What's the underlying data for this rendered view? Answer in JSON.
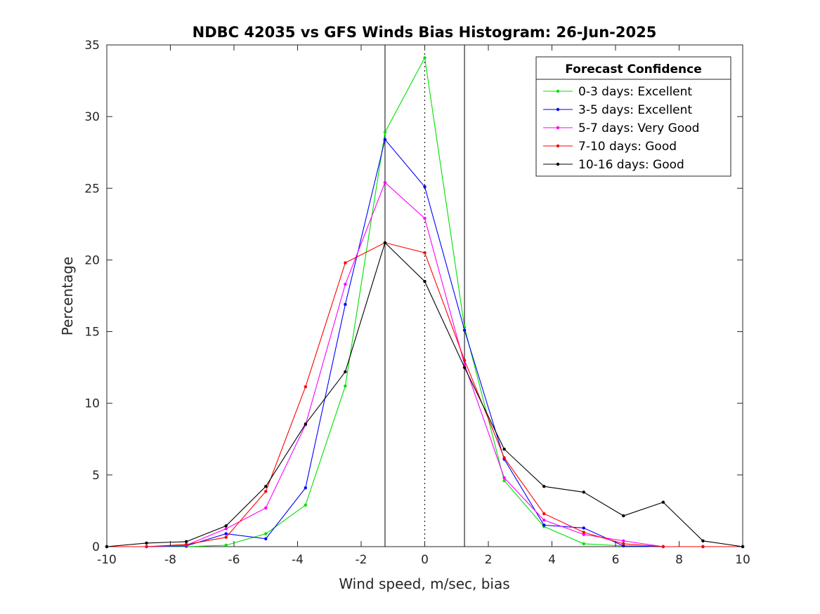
{
  "chart_data": {
    "type": "line",
    "title": "NDBC 42035 vs GFS Winds Bias Histogram: 26-Jun-2025",
    "xlabel": "Wind speed, m/sec, bias",
    "ylabel": "Percentage",
    "xlim": [
      -10,
      10
    ],
    "ylim": [
      0,
      35
    ],
    "xticks": [
      -10,
      -8,
      -6,
      -4,
      -2,
      0,
      2,
      4,
      6,
      8,
      10
    ],
    "yticks": [
      0,
      5,
      10,
      15,
      20,
      25,
      30,
      35
    ],
    "grid": false,
    "reference_lines": [
      {
        "x": -1.25,
        "style": "solid"
      },
      {
        "x": 0,
        "style": "dotted"
      },
      {
        "x": 1.25,
        "style": "solid"
      }
    ],
    "legend": {
      "title": "Forecast Confidence",
      "placement": "top-right"
    },
    "x": [
      -10,
      -8.75,
      -7.5,
      -6.25,
      -5,
      -3.75,
      -2.5,
      -1.25,
      0,
      1.25,
      2.5,
      3.75,
      5,
      6.25,
      7.5,
      8.75,
      10
    ],
    "series": [
      {
        "name": "0-3 days: Excellent",
        "color": "#00e000",
        "values": [
          0,
          0,
          0,
          0.1,
          0.9,
          2.9,
          11.2,
          28.9,
          34.1,
          15.3,
          4.6,
          1.4,
          0.2,
          0.05,
          0,
          0,
          0
        ]
      },
      {
        "name": "3-5 days: Excellent",
        "color": "#0000ff",
        "values": [
          0,
          0,
          0.05,
          0.9,
          0.55,
          4.1,
          16.9,
          28.4,
          25.1,
          15.1,
          6.1,
          1.5,
          1.3,
          0.05,
          0,
          0,
          0
        ]
      },
      {
        "name": "5-7 days: Very Good",
        "color": "#ff00ff",
        "values": [
          0,
          0,
          0.1,
          1.25,
          2.7,
          8.5,
          18.3,
          25.4,
          22.9,
          12.7,
          4.8,
          1.85,
          0.85,
          0.4,
          0,
          0,
          0
        ]
      },
      {
        "name": "7-10 days: Good",
        "color": "#ff0000",
        "values": [
          0,
          0,
          0.15,
          0.65,
          3.85,
          11.15,
          19.8,
          21.2,
          20.5,
          13.0,
          6.2,
          2.3,
          1.0,
          0.2,
          0,
          0,
          0
        ]
      },
      {
        "name": "10-16 days: Good",
        "color": "#000000",
        "values": [
          0,
          0.25,
          0.35,
          1.45,
          4.2,
          8.55,
          12.2,
          21.2,
          18.5,
          12.5,
          6.8,
          4.2,
          3.8,
          2.15,
          3.1,
          0.4,
          0
        ]
      }
    ]
  }
}
